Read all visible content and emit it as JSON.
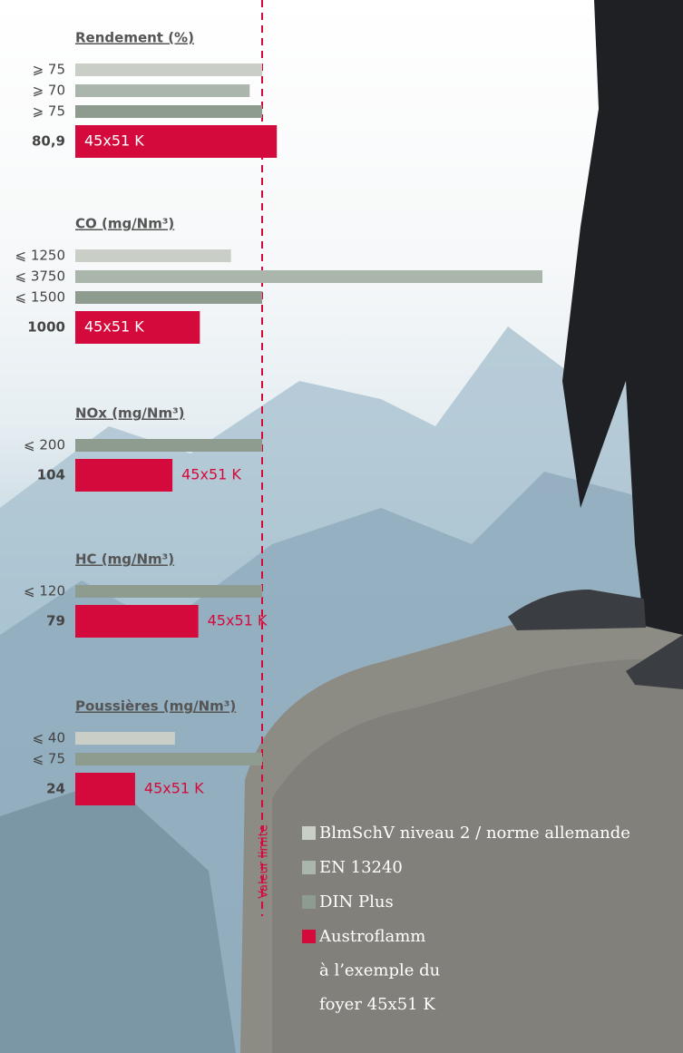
{
  "chart_data": [
    {
      "type": "bar",
      "title": "Rendement (%)",
      "xlim": [
        0,
        75
      ],
      "values": [
        75,
        70,
        75,
        80.9
      ],
      "value_labels": [
        "⩾ 75",
        "⩾ 70",
        "⩾ 75",
        "80,9"
      ],
      "colors": [
        "#c9cfc7",
        "#aab5ac",
        "#8e9c90",
        "#d50a3c"
      ],
      "bar_label": "45x51 K"
    },
    {
      "type": "bar",
      "title": "CO (mg/Nm³)",
      "xlim": [
        0,
        1500
      ],
      "values": [
        1250,
        3750,
        1500,
        1000
      ],
      "value_labels": [
        "⩽ 1250",
        "⩽ 3750",
        "⩽ 1500",
        "1000"
      ],
      "colors": [
        "#c9cfc7",
        "#aab5ac",
        "#8e9c90",
        "#d50a3c"
      ],
      "bar_label": "45x51 K"
    },
    {
      "type": "bar",
      "title": "NOx (mg/Nm³)",
      "xlim": [
        0,
        200
      ],
      "values": [
        200,
        104
      ],
      "value_labels": [
        "⩽ 200",
        "104"
      ],
      "colors": [
        "#8e9c90",
        "#d50a3c"
      ],
      "bar_label": "45x51 K"
    },
    {
      "type": "bar",
      "title": "HC (mg/Nm³)",
      "xlim": [
        0,
        120
      ],
      "values": [
        120,
        79
      ],
      "value_labels": [
        "⩽ 120",
        "79"
      ],
      "colors": [
        "#8e9c90",
        "#d50a3c"
      ],
      "bar_label": "45x51 K"
    },
    {
      "type": "bar",
      "title": "Poussières (mg/Nm³)",
      "xlim": [
        0,
        75
      ],
      "values": [
        40,
        75,
        24
      ],
      "value_labels": [
        "⩽ 40",
        "⩽ 75",
        "24"
      ],
      "colors": [
        "#c9cfc7",
        "#8e9c90",
        "#d50a3c"
      ],
      "bar_label": "45x51 K"
    }
  ],
  "limit_label": "Valeur limite",
  "legend": [
    {
      "color": "#c9cfc7",
      "lines": [
        "BlmSchV niveau 2 / norme allemande"
      ]
    },
    {
      "color": "#aab5ac",
      "lines": [
        "EN 13240"
      ]
    },
    {
      "color": "#8e9c90",
      "lines": [
        "DIN Plus"
      ]
    },
    {
      "color": "#d50a3c",
      "lines": [
        "Austroflamm",
        "à l’exemple du",
        "foyer 45x51 K"
      ]
    }
  ]
}
